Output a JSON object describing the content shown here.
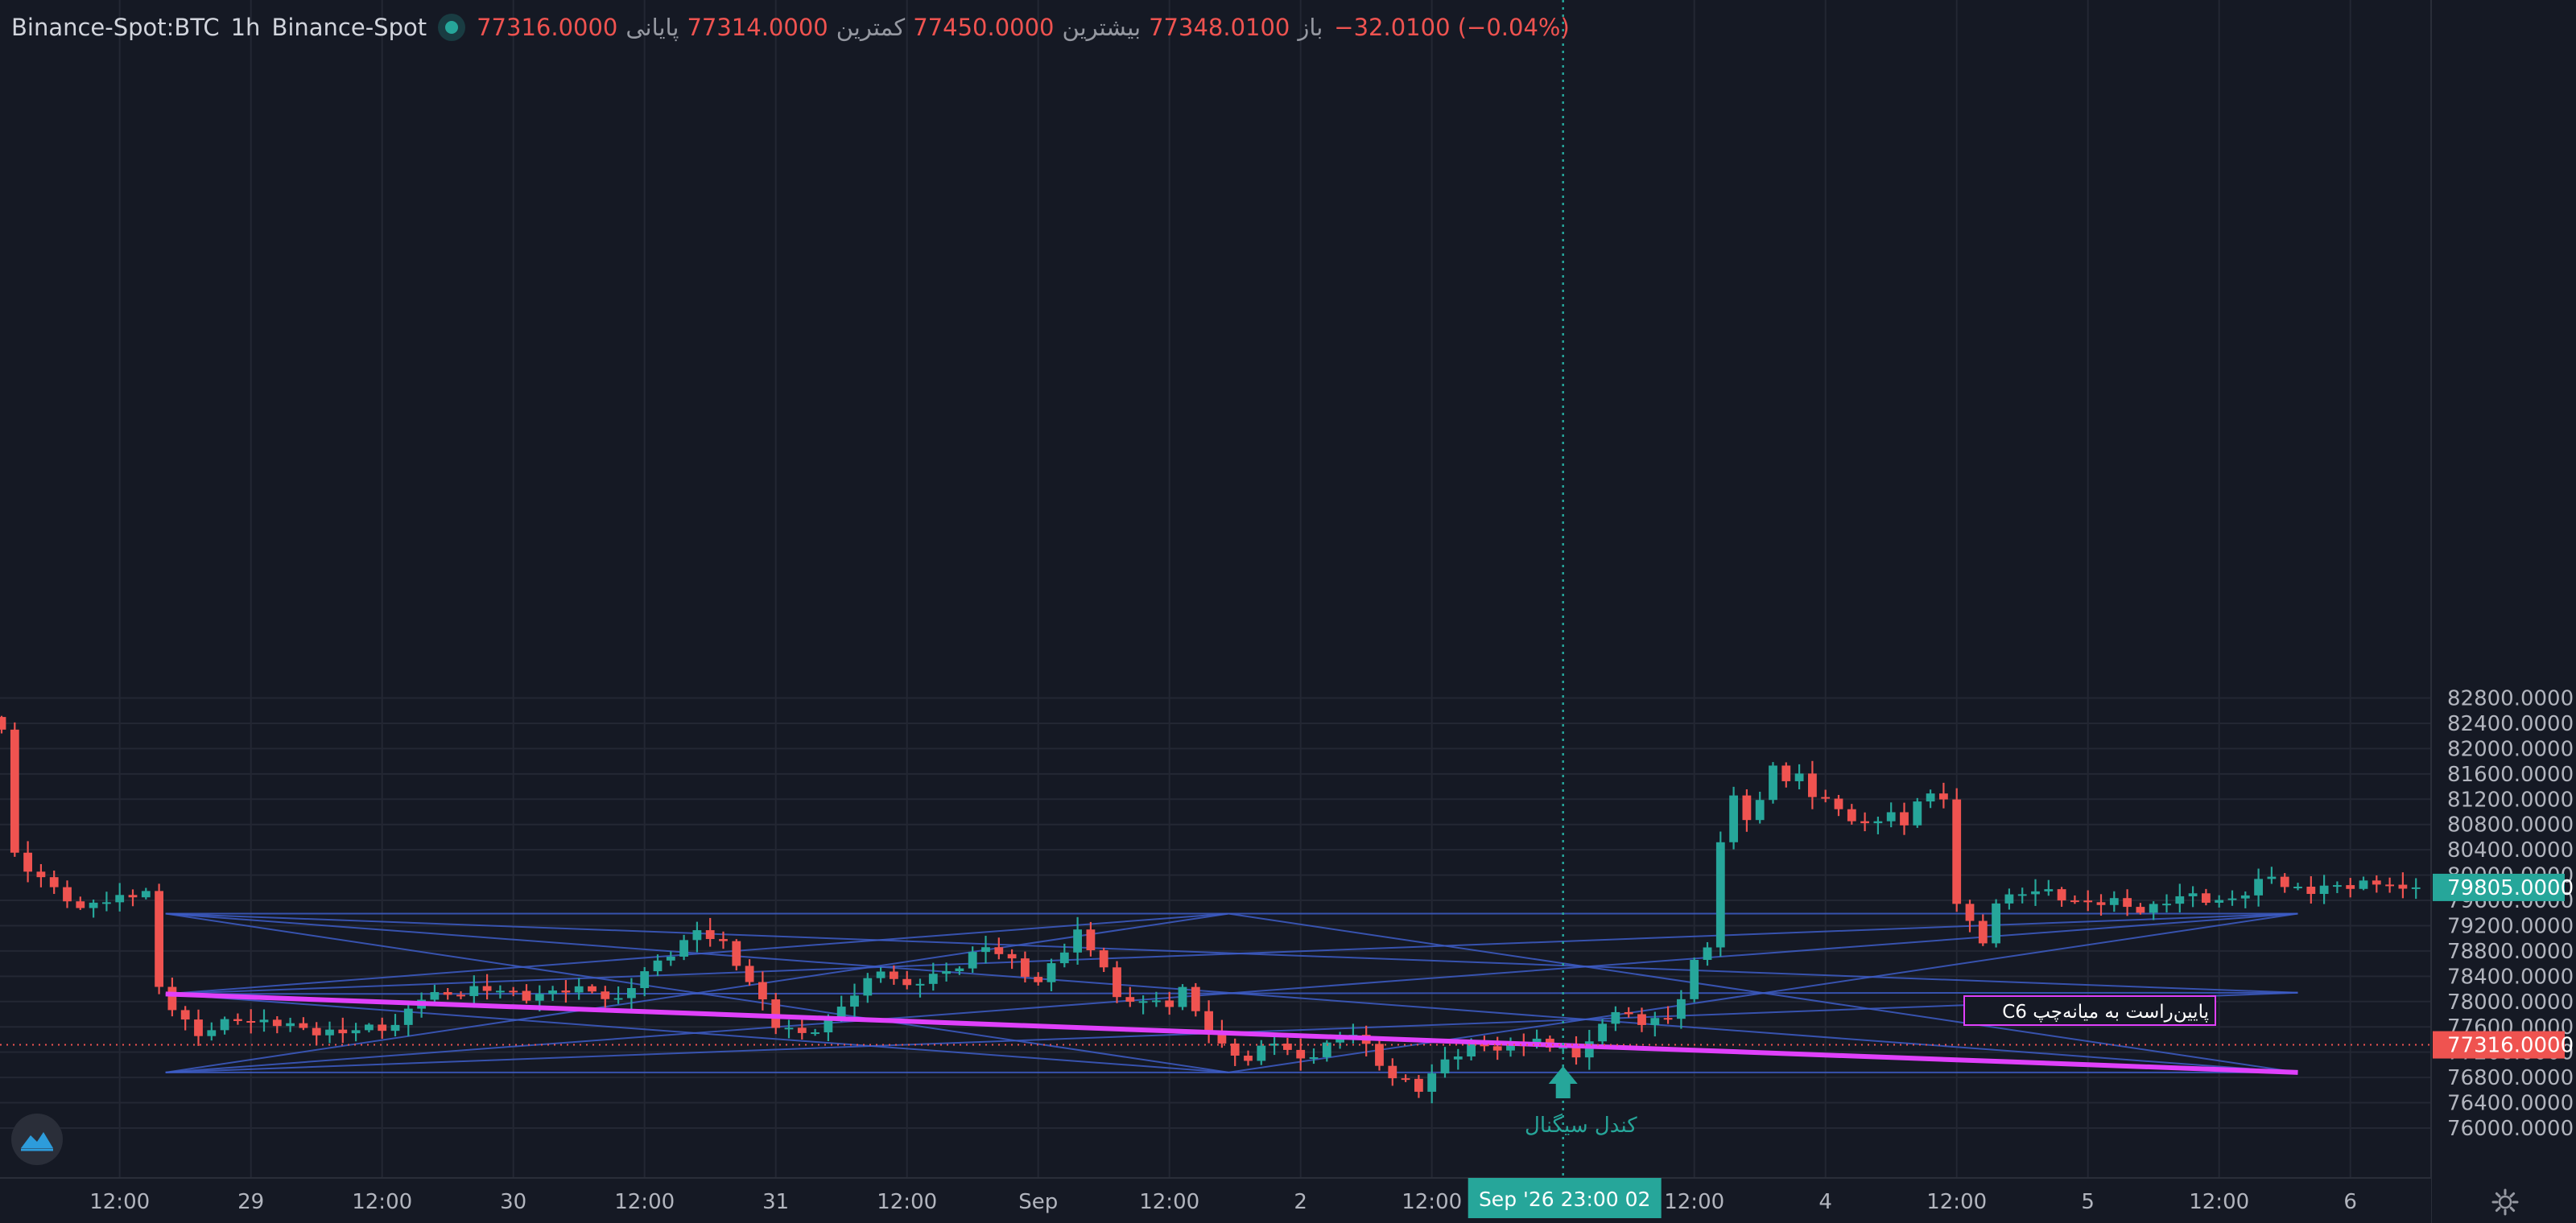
{
  "header": {
    "symbol": "Binance-Spot:BTC",
    "interval": "1h",
    "exchange": "Binance-Spot",
    "open_label": "باز",
    "open_value": "77348.0100",
    "high_label": "بیشترین",
    "high_value": "77450.0000",
    "low_label": "کمترین",
    "low_value": "77314.0000",
    "close_label": "پایانی",
    "close_value": "77316.0000",
    "change_value": "−32.0100 (−0.04%)"
  },
  "colors": {
    "background": "#151924",
    "grid": "#232733",
    "up": "#26a69a",
    "down": "#ef5350",
    "pattern_lines": "#3d5dc7",
    "trend_line": "#e040fb",
    "crosshair": "#26a69a",
    "axis_text": "#b2b5be"
  },
  "icons": {
    "logo": "logo-icon",
    "settings": "gear-icon"
  },
  "chart_data": {
    "type": "candlestick",
    "ylim": [
      75600,
      83000
    ],
    "y_ticks": [
      76000,
      76400,
      76800,
      77200,
      77600,
      78000,
      78400,
      78800,
      79200,
      79600,
      80000,
      80400,
      80800,
      81200,
      81600,
      82000,
      82400,
      82800
    ],
    "y_tick_labels": [
      "76000.0000",
      "76400.0000",
      "76800.0000",
      "77200.0000",
      "77600.0000",
      "78000.0000",
      "78400.0000",
      "78800.0000",
      "79200.0000",
      "79600.0000",
      "80000.0000",
      "80400.0000",
      "80800.0000",
      "81200.0000",
      "81600.0000",
      "82000.0000",
      "82400.0000",
      "82800.0000"
    ],
    "x_ticks": [
      {
        "bar": 9,
        "label": "12:00"
      },
      {
        "bar": 19,
        "label": "29"
      },
      {
        "bar": 29,
        "label": "12:00"
      },
      {
        "bar": 39,
        "label": "30"
      },
      {
        "bar": 49,
        "label": "12:00"
      },
      {
        "bar": 59,
        "label": "31"
      },
      {
        "bar": 69,
        "label": "12:00"
      },
      {
        "bar": 79,
        "label": "Sep"
      },
      {
        "bar": 89,
        "label": "12:00"
      },
      {
        "bar": 99,
        "label": "2"
      },
      {
        "bar": 109,
        "label": "12:00"
      },
      {
        "bar": 129,
        "label": "12:00"
      },
      {
        "bar": 139,
        "label": "4"
      },
      {
        "bar": 149,
        "label": "12:00"
      },
      {
        "bar": 159,
        "label": "5"
      },
      {
        "bar": 169,
        "label": "12:00"
      },
      {
        "bar": 179,
        "label": "6"
      }
    ],
    "last_price": 79805,
    "last_price_label": "79805.0000",
    "crosshair_price": 77316,
    "crosshair_price_label": "77316.0000",
    "crosshair_bar": 119,
    "crosshair_time_label": "Sep '26   23:00 02",
    "signal_label": "کندل سیگنال",
    "pattern_label": "C6 پایین‌راست به میانه‌چپ",
    "trend_line": [
      {
        "bar": 12.5,
        "price": 78120
      },
      {
        "bar": 175,
        "price": 76880
      }
    ],
    "pattern_points": {
      "A": {
        "bar": 12.5,
        "price": 79390
      },
      "B": {
        "bar": 12.5,
        "price": 78120
      },
      "C": {
        "bar": 12.5,
        "price": 76880
      },
      "D": {
        "bar": 93.5,
        "price": 79390
      },
      "E": {
        "bar": 93.5,
        "price": 76880
      },
      "F": {
        "bar": 175,
        "price": 79390
      },
      "G": {
        "bar": 175,
        "price": 78140
      },
      "H": {
        "bar": 175,
        "price": 76880
      }
    },
    "pattern_segments": [
      [
        "A",
        "D"
      ],
      [
        "D",
        "F"
      ],
      [
        "C",
        "E"
      ],
      [
        "E",
        "H"
      ],
      [
        "A",
        "H"
      ],
      [
        "C",
        "F"
      ],
      [
        "B",
        "F"
      ],
      [
        "B",
        "H"
      ],
      [
        "A",
        "G"
      ],
      [
        "C",
        "G"
      ],
      [
        "B",
        "G"
      ],
      [
        "B",
        "D"
      ],
      [
        "B",
        "E"
      ],
      [
        "A",
        "E"
      ],
      [
        "C",
        "D"
      ],
      [
        "D",
        "H"
      ],
      [
        "E",
        "F"
      ]
    ],
    "anchors": [
      {
        "bar": 0,
        "price": 82300
      },
      {
        "bar": 1,
        "price": 80300
      },
      {
        "bar": 4,
        "price": 79800
      },
      {
        "bar": 6,
        "price": 79400
      },
      {
        "bar": 7,
        "price": 79600
      },
      {
        "bar": 11,
        "price": 79700
      },
      {
        "bar": 12,
        "price": 78200
      },
      {
        "bar": 15,
        "price": 77450
      },
      {
        "bar": 18,
        "price": 77750
      },
      {
        "bar": 22,
        "price": 77600
      },
      {
        "bar": 26,
        "price": 77500
      },
      {
        "bar": 30,
        "price": 77650
      },
      {
        "bar": 32,
        "price": 78050
      },
      {
        "bar": 36,
        "price": 78200
      },
      {
        "bar": 40,
        "price": 78100
      },
      {
        "bar": 45,
        "price": 78200
      },
      {
        "bar": 47,
        "price": 78000
      },
      {
        "bar": 49,
        "price": 78450
      },
      {
        "bar": 51,
        "price": 78800
      },
      {
        "bar": 53,
        "price": 79100
      },
      {
        "bar": 55,
        "price": 78900
      },
      {
        "bar": 57,
        "price": 78350
      },
      {
        "bar": 59,
        "price": 77600
      },
      {
        "bar": 61,
        "price": 77500
      },
      {
        "bar": 63,
        "price": 77700
      },
      {
        "bar": 65,
        "price": 78100
      },
      {
        "bar": 67,
        "price": 78550
      },
      {
        "bar": 69,
        "price": 78200
      },
      {
        "bar": 71,
        "price": 78400
      },
      {
        "bar": 73,
        "price": 78600
      },
      {
        "bar": 75,
        "price": 78850
      },
      {
        "bar": 77,
        "price": 78650
      },
      {
        "bar": 79,
        "price": 78300
      },
      {
        "bar": 81,
        "price": 78800
      },
      {
        "bar": 82,
        "price": 79100
      },
      {
        "bar": 84,
        "price": 78600
      },
      {
        "bar": 85,
        "price": 78000
      },
      {
        "bar": 87,
        "price": 78000
      },
      {
        "bar": 89,
        "price": 78000
      },
      {
        "bar": 90,
        "price": 78200
      },
      {
        "bar": 91,
        "price": 77800
      },
      {
        "bar": 93,
        "price": 77300
      },
      {
        "bar": 95,
        "price": 77100
      },
      {
        "bar": 97,
        "price": 77350
      },
      {
        "bar": 99,
        "price": 77100
      },
      {
        "bar": 101,
        "price": 77300
      },
      {
        "bar": 103,
        "price": 77500
      },
      {
        "bar": 104,
        "price": 77300
      },
      {
        "bar": 106,
        "price": 76800
      },
      {
        "bar": 107,
        "price": 76700
      },
      {
        "bar": 108,
        "price": 76600
      },
      {
        "bar": 110,
        "price": 77100
      },
      {
        "bar": 112,
        "price": 77300
      },
      {
        "bar": 114,
        "price": 77250
      },
      {
        "bar": 116,
        "price": 77400
      },
      {
        "bar": 117,
        "price": 77400
      },
      {
        "bar": 118,
        "price": 77200
      },
      {
        "bar": 119,
        "price": 77316
      },
      {
        "bar": 120,
        "price": 77100
      },
      {
        "bar": 121,
        "price": 77400
      },
      {
        "bar": 122,
        "price": 77700
      },
      {
        "bar": 124,
        "price": 77800
      },
      {
        "bar": 125,
        "price": 77650
      },
      {
        "bar": 127,
        "price": 77800
      },
      {
        "bar": 128,
        "price": 78000
      },
      {
        "bar": 129,
        "price": 78600
      },
      {
        "bar": 130,
        "price": 78900
      },
      {
        "bar": 131,
        "price": 80500
      },
      {
        "bar": 132,
        "price": 81300
      },
      {
        "bar": 133,
        "price": 80900
      },
      {
        "bar": 134,
        "price": 81100
      },
      {
        "bar": 135,
        "price": 81750
      },
      {
        "bar": 136,
        "price": 81500
      },
      {
        "bar": 137,
        "price": 81600
      },
      {
        "bar": 138,
        "price": 81300
      },
      {
        "bar": 140,
        "price": 81000
      },
      {
        "bar": 142,
        "price": 80800
      },
      {
        "bar": 144,
        "price": 81000
      },
      {
        "bar": 145,
        "price": 80700
      },
      {
        "bar": 146,
        "price": 81200
      },
      {
        "bar": 147,
        "price": 81300
      },
      {
        "bar": 148,
        "price": 81200
      },
      {
        "bar": 149,
        "price": 79600
      },
      {
        "bar": 150,
        "price": 79200
      },
      {
        "bar": 151,
        "price": 78900
      },
      {
        "bar": 152,
        "price": 79600
      },
      {
        "bar": 154,
        "price": 79750
      },
      {
        "bar": 156,
        "price": 79700
      },
      {
        "bar": 158,
        "price": 79600
      },
      {
        "bar": 161,
        "price": 79550
      },
      {
        "bar": 163,
        "price": 79450
      },
      {
        "bar": 165,
        "price": 79600
      },
      {
        "bar": 167,
        "price": 79650
      },
      {
        "bar": 169,
        "price": 79600
      },
      {
        "bar": 171,
        "price": 79700
      },
      {
        "bar": 173,
        "price": 80000
      },
      {
        "bar": 174,
        "price": 79850
      },
      {
        "bar": 176,
        "price": 79750
      },
      {
        "bar": 178,
        "price": 79800
      },
      {
        "bar": 180,
        "price": 79900
      },
      {
        "bar": 182,
        "price": 79850
      },
      {
        "bar": 183,
        "price": 79700
      },
      {
        "bar": 184,
        "price": 79805
      }
    ]
  }
}
